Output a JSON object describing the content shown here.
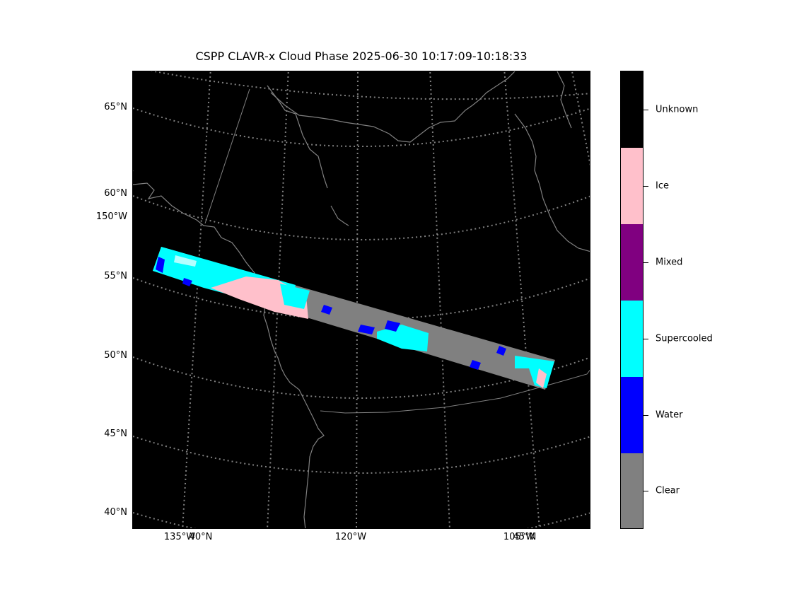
{
  "title": "CSPP CLAVR-x Cloud Phase 2025-06-30 10:17:09-10:18:33",
  "lat_labels": [
    {
      "text": "65°N",
      "value": 65
    },
    {
      "text": "60°N",
      "value": 60
    },
    {
      "text": "55°N",
      "value": 55
    },
    {
      "text": "50°N",
      "value": 50
    },
    {
      "text": "45°N",
      "value": 45
    },
    {
      "text": "40°N",
      "value": 40
    }
  ],
  "lon_label_left": "150°W",
  "lon_labels_bottom": [
    {
      "text": "135°W",
      "value": -135
    },
    {
      "text": "40°N",
      "value": 40
    },
    {
      "text": "120°W",
      "value": -120
    },
    {
      "text": "105°W",
      "value": -105
    },
    {
      "text": "45°N",
      "value": 45
    }
  ],
  "colorbar": {
    "categories": [
      {
        "label": "Unknown",
        "color": "#000000"
      },
      {
        "label": "Ice",
        "color": "#ffc0cb"
      },
      {
        "label": "Mixed",
        "color": "#800080"
      },
      {
        "label": "Supercooled",
        "color": "#00ffff"
      },
      {
        "label": "Water",
        "color": "#0000ff"
      },
      {
        "label": "Clear",
        "color": "#808080"
      }
    ]
  },
  "colors": {
    "background": "#000000",
    "graticule": "#808080",
    "coastline": "#808080"
  }
}
